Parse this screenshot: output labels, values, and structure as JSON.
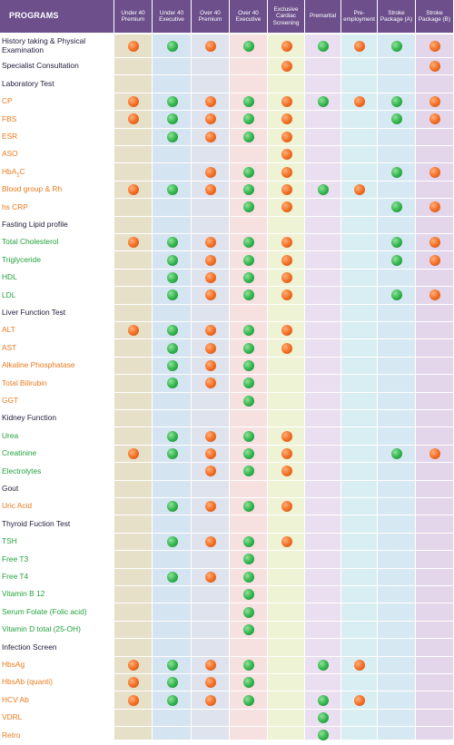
{
  "header": {
    "programs_label": "PROGRAMS",
    "columns": [
      {
        "label": "Under 40 Premium",
        "lines": [
          "Under 40",
          "Premium"
        ]
      },
      {
        "label": "Under 40 Executive",
        "lines": [
          "Under 40",
          "Executive"
        ]
      },
      {
        "label": "Over 40 Premium",
        "lines": [
          "Over 40",
          "Premium"
        ]
      },
      {
        "label": "Over 40 Executive",
        "lines": [
          "Over 40",
          "Executive"
        ]
      },
      {
        "label": "Exclusive Cardiac Screening",
        "lines": [
          "Exclusive",
          "Cardiac",
          "Screening"
        ]
      },
      {
        "label": "Premarital",
        "lines": [
          "Premarital"
        ]
      },
      {
        "label": "Pre-employment",
        "lines": [
          "Pre-",
          "employment"
        ]
      },
      {
        "label": "Stroke Package (A)",
        "lines": [
          "Stroke",
          "Package (A)"
        ]
      },
      {
        "label": "Stroke Package (B)",
        "lines": [
          "Stroke",
          "Package (B)"
        ]
      }
    ]
  },
  "colors": {
    "header_bg": "#6d4f8c",
    "orange_dot": "#f26b21",
    "green_dot": "#2fb24a",
    "orange_text": "#ea7a1e",
    "green_text": "#23a23c",
    "section_text": "#23203f",
    "column_bands": [
      "#e6e0c9",
      "#d5e4f1",
      "#dfe3ee",
      "#f6e0e0",
      "#eef3d6",
      "#eadff0",
      "#d9eef2",
      "#d6e8f1",
      "#e3d6ea"
    ]
  },
  "rows": [
    {
      "label": "History taking & Physical Examination",
      "type": "section",
      "cells": [
        "o",
        "g",
        "o",
        "g",
        "o",
        "g",
        "o",
        "g",
        "o"
      ]
    },
    {
      "label": "Specialist Consultation",
      "type": "section",
      "cells": [
        "",
        "",
        "",
        "",
        "o",
        "",
        "",
        "",
        "o"
      ]
    },
    {
      "label": "Laboratory Test",
      "type": "section",
      "cells": [
        "",
        "",
        "",
        "",
        "",
        "",
        "",
        "",
        ""
      ]
    },
    {
      "label": "CP",
      "type": "orange",
      "cells": [
        "o",
        "g",
        "o",
        "g",
        "o",
        "g",
        "o",
        "g",
        "o"
      ]
    },
    {
      "label": "FBS",
      "type": "orange",
      "cells": [
        "o",
        "g",
        "o",
        "g",
        "o",
        "",
        "",
        "g",
        "o"
      ]
    },
    {
      "label": "ESR",
      "type": "orange",
      "cells": [
        "",
        "g",
        "o",
        "g",
        "o",
        "",
        "",
        "",
        ""
      ]
    },
    {
      "label": "ASO",
      "type": "orange",
      "cells": [
        "",
        "",
        "",
        "",
        "o",
        "",
        "",
        "",
        ""
      ]
    },
    {
      "label": "HbA",
      "sub": "1",
      "suffix": "C",
      "type": "orange",
      "cells": [
        "",
        "",
        "o",
        "g",
        "o",
        "",
        "",
        "g",
        "o"
      ]
    },
    {
      "label": "Blood group & Rh",
      "type": "orange",
      "cells": [
        "o",
        "g",
        "o",
        "g",
        "o",
        "g",
        "o",
        "",
        ""
      ]
    },
    {
      "label": "hs CRP",
      "type": "orange",
      "cells": [
        "",
        "",
        "",
        "g",
        "o",
        "",
        "",
        "g",
        "o"
      ]
    },
    {
      "label": "Fasting Lipid profile",
      "type": "section",
      "cells": [
        "",
        "",
        "",
        "",
        "",
        "",
        "",
        "",
        ""
      ]
    },
    {
      "label": "Total Cholesterol",
      "type": "green",
      "cells": [
        "o",
        "g",
        "o",
        "g",
        "o",
        "",
        "",
        "g",
        "o"
      ]
    },
    {
      "label": "Triglyceride",
      "type": "green",
      "cells": [
        "",
        "g",
        "o",
        "g",
        "o",
        "",
        "",
        "g",
        "o"
      ]
    },
    {
      "label": "HDL",
      "type": "green",
      "cells": [
        "",
        "g",
        "o",
        "g",
        "o",
        "",
        "",
        "",
        ""
      ]
    },
    {
      "label": "LDL",
      "type": "green",
      "cells": [
        "",
        "g",
        "o",
        "g",
        "o",
        "",
        "",
        "g",
        "o"
      ]
    },
    {
      "label": "Liver Function Test",
      "type": "section",
      "cells": [
        "",
        "",
        "",
        "",
        "",
        "",
        "",
        "",
        ""
      ]
    },
    {
      "label": "ALT",
      "type": "orange",
      "cells": [
        "o",
        "g",
        "o",
        "g",
        "o",
        "",
        "",
        "",
        ""
      ]
    },
    {
      "label": "AST",
      "type": "orange",
      "cells": [
        "",
        "g",
        "o",
        "g",
        "o",
        "",
        "",
        "",
        ""
      ]
    },
    {
      "label": "Alkaline Phosphatase",
      "type": "orange",
      "cells": [
        "",
        "g",
        "o",
        "g",
        "",
        "",
        "",
        "",
        ""
      ]
    },
    {
      "label": "Total Bilirubin",
      "type": "orange",
      "cells": [
        "",
        "g",
        "o",
        "g",
        "",
        "",
        "",
        "",
        ""
      ]
    },
    {
      "label": "GGT",
      "type": "orange",
      "cells": [
        "",
        "",
        "",
        "g",
        "",
        "",
        "",
        "",
        ""
      ]
    },
    {
      "label": "Kidney Function",
      "type": "section",
      "cells": [
        "",
        "",
        "",
        "",
        "",
        "",
        "",
        "",
        ""
      ]
    },
    {
      "label": "Urea",
      "type": "green",
      "cells": [
        "",
        "g",
        "o",
        "g",
        "o",
        "",
        "",
        "",
        ""
      ]
    },
    {
      "label": "Creatinine",
      "type": "green",
      "cells": [
        "o",
        "g",
        "o",
        "g",
        "o",
        "",
        "",
        "g",
        "o"
      ]
    },
    {
      "label": "Electrolytes",
      "type": "green",
      "cells": [
        "",
        "",
        "o",
        "g",
        "o",
        "",
        "",
        "",
        ""
      ]
    },
    {
      "label": "Gout",
      "type": "section",
      "cells": [
        "",
        "",
        "",
        "",
        "",
        "",
        "",
        "",
        ""
      ]
    },
    {
      "label": "Uric Acid",
      "type": "orange",
      "cells": [
        "",
        "g",
        "o",
        "g",
        "o",
        "",
        "",
        "",
        ""
      ]
    },
    {
      "label": "Thyroid Fuction Test",
      "type": "section",
      "cells": [
        "",
        "",
        "",
        "",
        "",
        "",
        "",
        "",
        ""
      ]
    },
    {
      "label": "TSH",
      "type": "green",
      "cells": [
        "",
        "g",
        "o",
        "g",
        "o",
        "",
        "",
        "",
        ""
      ]
    },
    {
      "label": "Free T3",
      "type": "green",
      "cells": [
        "",
        "",
        "",
        "g",
        "",
        "",
        "",
        "",
        ""
      ]
    },
    {
      "label": "Free T4",
      "type": "green",
      "cells": [
        "",
        "g",
        "o",
        "g",
        "",
        "",
        "",
        "",
        ""
      ]
    },
    {
      "label": "Vitamin B 12",
      "type": "green",
      "cells": [
        "",
        "",
        "",
        "g",
        "",
        "",
        "",
        "",
        ""
      ]
    },
    {
      "label": "Serum Folate (Folic acid)",
      "type": "green",
      "cells": [
        "",
        "",
        "",
        "g",
        "",
        "",
        "",
        "",
        ""
      ]
    },
    {
      "label": "Vitamin D total (25-OH)",
      "type": "green",
      "cells": [
        "",
        "",
        "",
        "g",
        "",
        "",
        "",
        "",
        ""
      ]
    },
    {
      "label": "Infection Screen",
      "type": "section",
      "cells": [
        "",
        "",
        "",
        "",
        "",
        "",
        "",
        "",
        ""
      ]
    },
    {
      "label": "HbsAg",
      "type": "orange",
      "cells": [
        "o",
        "g",
        "o",
        "g",
        "",
        "g",
        "o",
        "",
        ""
      ]
    },
    {
      "label": "HbsAb (quanti)",
      "type": "orange",
      "cells": [
        "o",
        "g",
        "o",
        "g",
        "",
        "",
        "",
        "",
        ""
      ]
    },
    {
      "label": "HCV Ab",
      "type": "orange",
      "cells": [
        "o",
        "g",
        "o",
        "g",
        "",
        "g",
        "o",
        "",
        ""
      ]
    },
    {
      "label": "VDRL",
      "type": "orange",
      "cells": [
        "",
        "",
        "",
        "",
        "",
        "g",
        "",
        "",
        ""
      ]
    },
    {
      "label": "Retro",
      "type": "orange",
      "cells": [
        "",
        "",
        "",
        "",
        "",
        "g",
        "",
        "",
        ""
      ]
    }
  ]
}
